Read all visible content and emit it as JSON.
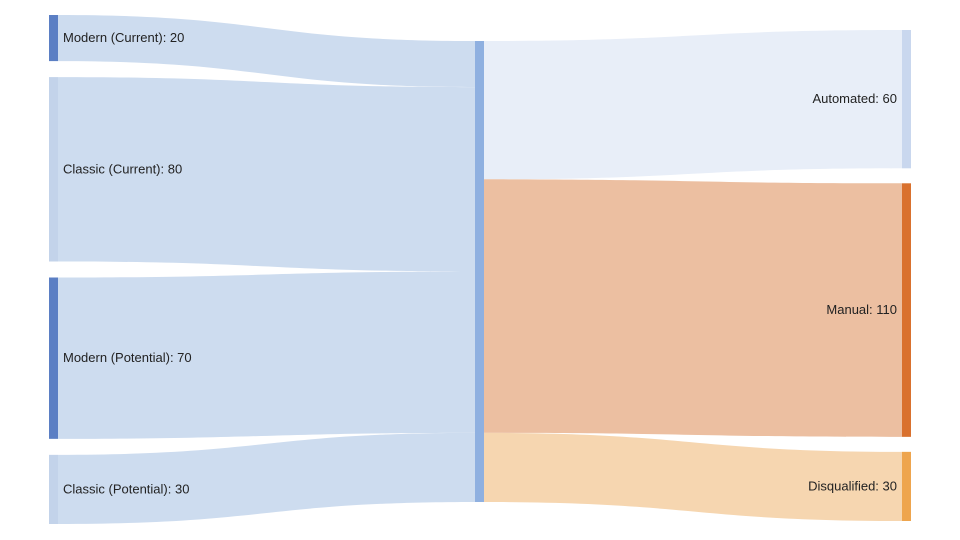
{
  "chart_data": {
    "type": "sankey",
    "nodes": [
      {
        "id": "modern_current",
        "name": "Modern (Current)",
        "value": 20,
        "column": 0,
        "color": "#5b7fc4",
        "label": "Modern (Current): 20"
      },
      {
        "id": "classic_current",
        "name": "Classic (Current)",
        "value": 80,
        "column": 0,
        "color": "#c3d3ea",
        "label": "Classic (Current): 80"
      },
      {
        "id": "modern_potential",
        "name": "Modern (Potential)",
        "value": 70,
        "column": 0,
        "color": "#5b7fc4",
        "label": "Modern (Potential): 70"
      },
      {
        "id": "classic_potential",
        "name": "Classic (Potential)",
        "value": 30,
        "column": 0,
        "color": "#c3d3ea",
        "label": "Classic (Potential): 30"
      },
      {
        "id": "middle",
        "name": "",
        "value": 200,
        "column": 1,
        "color": "#8fb0e0",
        "label": ""
      },
      {
        "id": "automated",
        "name": "Automated",
        "value": 60,
        "column": 2,
        "color": "#c9d7ee",
        "label": "Automated: 60"
      },
      {
        "id": "manual",
        "name": "Manual",
        "value": 110,
        "column": 2,
        "color": "#d9712e",
        "label": "Manual: 110"
      },
      {
        "id": "disqualified",
        "name": "Disqualified",
        "value": 30,
        "column": 2,
        "color": "#eea54e",
        "label": "Disqualified: 30"
      }
    ],
    "links": [
      {
        "source": "modern_current",
        "target": "middle",
        "value": 20,
        "color": "#cddcef"
      },
      {
        "source": "classic_current",
        "target": "middle",
        "value": 80,
        "color": "#cddcef"
      },
      {
        "source": "modern_potential",
        "target": "middle",
        "value": 70,
        "color": "#cddcef"
      },
      {
        "source": "classic_potential",
        "target": "middle",
        "value": 30,
        "color": "#cddcef"
      },
      {
        "source": "middle",
        "target": "automated",
        "value": 60,
        "color": "#e8eef8"
      },
      {
        "source": "middle",
        "target": "manual",
        "value": 110,
        "color": "#ecbfa1"
      },
      {
        "source": "middle",
        "target": "disqualified",
        "value": 30,
        "color": "#f6d6b0"
      }
    ]
  }
}
